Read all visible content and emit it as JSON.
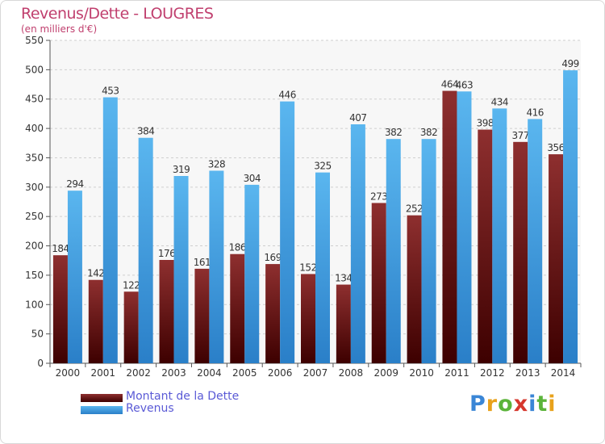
{
  "title": "Revenus/Dette - LOUGRES",
  "unit_label": "(en milliers d'€)",
  "chart_data": {
    "type": "bar",
    "categories": [
      "2000",
      "2001",
      "2002",
      "2003",
      "2004",
      "2005",
      "2006",
      "2007",
      "2008",
      "2009",
      "2010",
      "2011",
      "2012",
      "2013",
      "2014"
    ],
    "series": [
      {
        "name": "Montant de la Dette",
        "color": "#7a1a1a",
        "values": [
          184,
          142,
          122,
          176,
          161,
          186,
          169,
          152,
          134,
          273,
          252,
          464,
          398,
          377,
          356
        ]
      },
      {
        "name": "Revenus",
        "color": "#3a9ee4",
        "values": [
          294,
          453,
          384,
          319,
          328,
          304,
          446,
          325,
          407,
          382,
          382,
          463,
          434,
          416,
          499
        ]
      }
    ],
    "ylim": [
      0,
      550
    ],
    "yticks": [
      0,
      50,
      100,
      150,
      200,
      250,
      300,
      350,
      400,
      450,
      500,
      550
    ],
    "grid": true,
    "legend": "bottom-left"
  },
  "brand": [
    "P",
    "r",
    "o",
    "x",
    "i",
    "t",
    "i"
  ],
  "brand_colors": [
    "#3a86d6",
    "#e8a21c",
    "#5bb43a",
    "#d6372d",
    "#3a86d6",
    "#5bb43a",
    "#e8a21c"
  ]
}
